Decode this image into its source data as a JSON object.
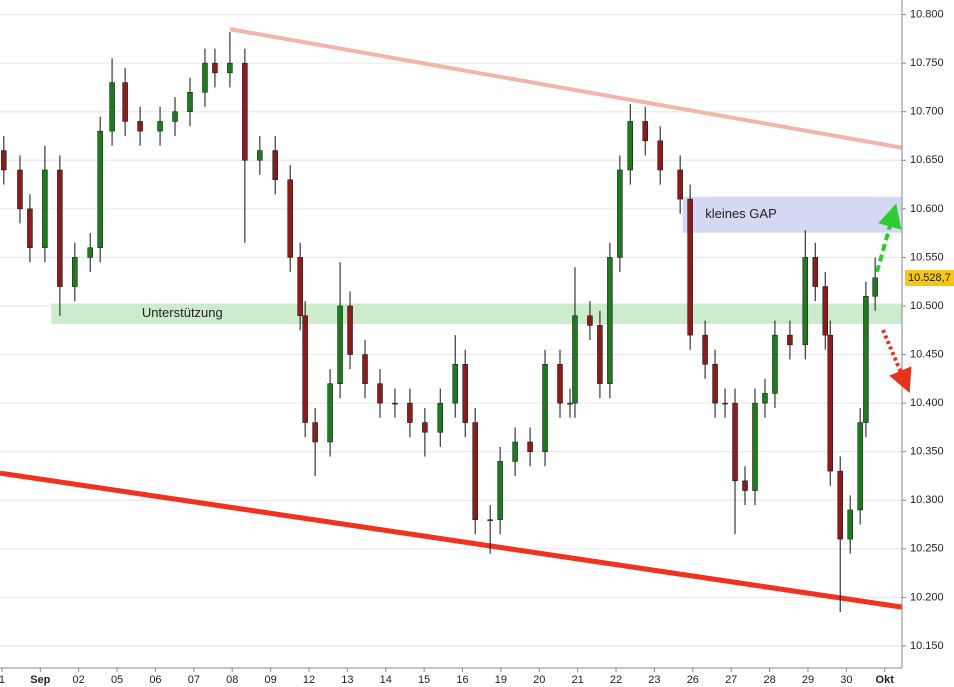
{
  "chart_data": {
    "type": "candlestick",
    "x": [
      0.05,
      0.47,
      0.73,
      1.12,
      1.51,
      1.9,
      2.3,
      2.56,
      2.87,
      3.21,
      3.6,
      4.12,
      4.51,
      4.9,
      5.29,
      5.55,
      5.94,
      6.33,
      6.72,
      7.12,
      7.51,
      7.77,
      7.9,
      8.16,
      8.55,
      8.81,
      9.07,
      9.46,
      9.85,
      10.24,
      10.63,
      11.02,
      11.42,
      11.81,
      12.07,
      12.33,
      12.72,
      12.98,
      13.37,
      13.76,
      14.15,
      14.54,
      14.8,
      14.93,
      15.32,
      15.58,
      15.84,
      16.1,
      16.37,
      16.76,
      17.15,
      17.67,
      17.93,
      18.32,
      18.58,
      18.84,
      19.1,
      19.36,
      19.62,
      19.88,
      20.14,
      20.53,
      20.93,
      21.19,
      21.45,
      21.58,
      21.84,
      22.1,
      22.36,
      22.51,
      22.75
    ],
    "open": [
      10.66,
      10.64,
      10.6,
      10.56,
      10.64,
      10.52,
      10.55,
      10.56,
      10.68,
      10.73,
      10.69,
      10.68,
      10.69,
      10.7,
      10.72,
      10.75,
      10.74,
      10.75,
      10.65,
      10.66,
      10.63,
      10.55,
      10.49,
      10.38,
      10.36,
      10.42,
      10.5,
      10.45,
      10.42,
      10.4,
      10.4,
      10.38,
      10.37,
      10.4,
      10.44,
      10.38,
      10.28,
      10.28,
      10.34,
      10.36,
      10.35,
      10.44,
      10.4,
      10.4,
      10.49,
      10.48,
      10.42,
      10.55,
      10.64,
      10.69,
      10.67,
      10.64,
      10.61,
      10.47,
      10.44,
      10.4,
      10.4,
      10.32,
      10.31,
      10.4,
      10.41,
      10.47,
      10.46,
      10.55,
      10.52,
      10.47,
      10.33,
      10.26,
      10.29,
      10.38,
      10.51
    ],
    "high": [
      10.675,
      10.655,
      10.615,
      10.665,
      10.655,
      10.565,
      10.575,
      10.695,
      10.755,
      10.745,
      10.705,
      10.705,
      10.715,
      10.735,
      10.765,
      10.765,
      10.782,
      10.765,
      10.675,
      10.675,
      10.645,
      10.565,
      10.505,
      10.395,
      10.435,
      10.545,
      10.515,
      10.465,
      10.435,
      10.415,
      10.415,
      10.395,
      10.415,
      10.47,
      10.455,
      10.395,
      10.295,
      10.355,
      10.375,
      10.375,
      10.455,
      10.455,
      10.415,
      10.54,
      10.505,
      10.495,
      10.565,
      10.655,
      10.708,
      10.705,
      10.685,
      10.655,
      10.625,
      10.485,
      10.455,
      10.415,
      10.415,
      10.335,
      10.415,
      10.425,
      10.485,
      10.485,
      10.578,
      10.565,
      10.535,
      10.485,
      10.345,
      10.305,
      10.395,
      10.525,
      10.55
    ],
    "low": [
      10.625,
      10.585,
      10.545,
      10.545,
      10.49,
      10.505,
      10.535,
      10.545,
      10.665,
      10.675,
      10.665,
      10.665,
      10.675,
      10.685,
      10.705,
      10.725,
      10.725,
      10.565,
      10.635,
      10.615,
      10.535,
      10.475,
      10.365,
      10.325,
      10.345,
      10.405,
      10.435,
      10.405,
      10.385,
      10.385,
      10.365,
      10.345,
      10.355,
      10.385,
      10.365,
      10.265,
      10.245,
      10.265,
      10.325,
      10.335,
      10.335,
      10.385,
      10.385,
      10.385,
      10.465,
      10.405,
      10.405,
      10.535,
      10.625,
      10.655,
      10.625,
      10.595,
      10.455,
      10.425,
      10.385,
      10.385,
      10.265,
      10.295,
      10.295,
      10.385,
      10.395,
      10.445,
      10.445,
      10.505,
      10.455,
      10.315,
      10.185,
      10.245,
      10.275,
      10.365,
      10.495
    ],
    "close": [
      10.64,
      10.6,
      10.56,
      10.64,
      10.52,
      10.55,
      10.56,
      10.68,
      10.73,
      10.69,
      10.68,
      10.69,
      10.7,
      10.72,
      10.75,
      10.74,
      10.75,
      10.65,
      10.66,
      10.63,
      10.55,
      10.49,
      10.38,
      10.36,
      10.42,
      10.5,
      10.45,
      10.42,
      10.4,
      10.4,
      10.38,
      10.37,
      10.4,
      10.44,
      10.38,
      10.28,
      10.28,
      10.34,
      10.36,
      10.35,
      10.44,
      10.4,
      10.4,
      10.49,
      10.48,
      10.42,
      10.55,
      10.64,
      10.69,
      10.67,
      10.64,
      10.61,
      10.47,
      10.44,
      10.4,
      10.4,
      10.32,
      10.31,
      10.4,
      10.41,
      10.47,
      10.46,
      10.55,
      10.52,
      10.47,
      10.33,
      10.26,
      10.29,
      10.38,
      10.51,
      10.529
    ],
    "up_color": "#1f7a1f",
    "down_color": "#8a1c1c",
    "xlim": [
      -0.05,
      23.45
    ],
    "ylim": [
      10.13,
      10.815
    ],
    "xticks": [
      {
        "value": 0,
        "label": "1"
      },
      {
        "value": 1,
        "label": "Sep"
      },
      {
        "value": 2,
        "label": "02"
      },
      {
        "value": 3,
        "label": "05"
      },
      {
        "value": 4,
        "label": "06"
      },
      {
        "value": 5,
        "label": "07"
      },
      {
        "value": 6,
        "label": "08"
      },
      {
        "value": 7,
        "label": "09"
      },
      {
        "value": 8,
        "label": "12"
      },
      {
        "value": 9,
        "label": "13"
      },
      {
        "value": 10,
        "label": "14"
      },
      {
        "value": 11,
        "label": "15"
      },
      {
        "value": 12,
        "label": "16"
      },
      {
        "value": 13,
        "label": "19"
      },
      {
        "value": 14,
        "label": "20"
      },
      {
        "value": 15,
        "label": "21"
      },
      {
        "value": 16,
        "label": "22"
      },
      {
        "value": 17,
        "label": "23"
      },
      {
        "value": 18,
        "label": "26"
      },
      {
        "value": 19,
        "label": "27"
      },
      {
        "value": 20,
        "label": "28"
      },
      {
        "value": 21,
        "label": "29"
      },
      {
        "value": 22,
        "label": "30"
      },
      {
        "value": 23,
        "label": "Okt"
      }
    ],
    "yticks": [
      {
        "value": 10.15,
        "label": "10.150"
      },
      {
        "value": 10.2,
        "label": "10.200"
      },
      {
        "value": 10.25,
        "label": "10.250"
      },
      {
        "value": 10.3,
        "label": "10.300"
      },
      {
        "value": 10.35,
        "label": "10.350"
      },
      {
        "value": 10.4,
        "label": "10.400"
      },
      {
        "value": 10.45,
        "label": "10.450"
      },
      {
        "value": 10.5,
        "label": "10.500"
      },
      {
        "value": 10.55,
        "label": "10.550"
      },
      {
        "value": 10.6,
        "label": "10.600"
      },
      {
        "value": 10.65,
        "label": "10.650"
      },
      {
        "value": 10.7,
        "label": "10.700"
      },
      {
        "value": 10.75,
        "label": "10.750"
      },
      {
        "value": 10.8,
        "label": "10.800"
      }
    ],
    "grid": true,
    "last_price": {
      "value": 10.5287,
      "label": "10.528,7"
    },
    "zones": [
      {
        "label": "Unterstützung",
        "color": "#cdeccd",
        "x": [
          1.3,
          23.45
        ],
        "y": [
          10.482,
          10.502
        ]
      },
      {
        "label": "kleines GAP",
        "color": "#d4d8f2",
        "x": [
          17.75,
          23.45
        ],
        "y": [
          10.576,
          10.612
        ]
      }
    ],
    "trendlines": [
      {
        "color": "#f2b5aa",
        "width": 4,
        "x": [
          5.94,
          23.45
        ],
        "y": [
          10.785,
          10.663
        ]
      },
      {
        "color": "#f0321e",
        "width": 5,
        "x": [
          -0.05,
          23.45
        ],
        "y": [
          10.328,
          10.19
        ]
      }
    ]
  }
}
